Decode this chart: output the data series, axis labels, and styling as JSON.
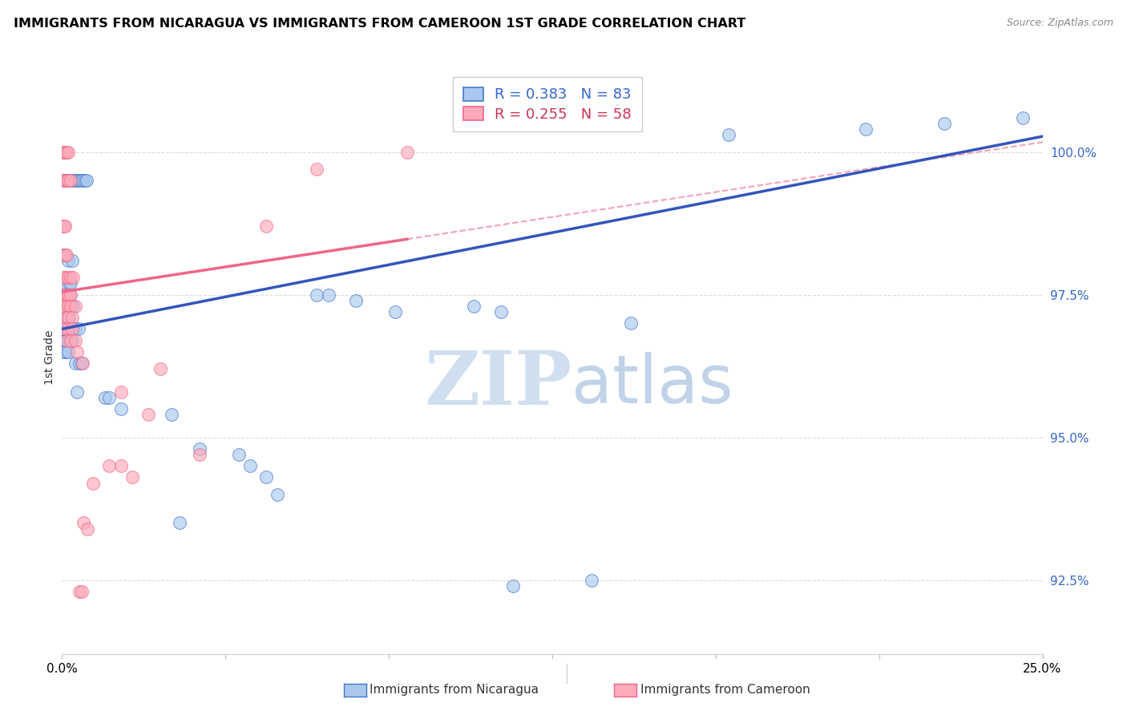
{
  "title": "IMMIGRANTS FROM NICARAGUA VS IMMIGRANTS FROM CAMEROON 1ST GRADE CORRELATION CHART",
  "source": "Source: ZipAtlas.com",
  "ylabel": "1st Grade",
  "xlim": [
    0.0,
    25.0
  ],
  "ylim": [
    91.2,
    101.6
  ],
  "yticks": [
    92.5,
    95.0,
    97.5,
    100.0
  ],
  "ytick_labels": [
    "92.5%",
    "95.0%",
    "97.5%",
    "100.0%"
  ],
  "xtick_positions": [
    0.0,
    4.167,
    8.333,
    12.5,
    16.667,
    20.833,
    25.0
  ],
  "blue_label": "Immigrants from Nicaragua",
  "pink_label": "Immigrants from Cameroon",
  "blue_R": 0.383,
  "blue_N": 83,
  "pink_R": 0.255,
  "pink_N": 58,
  "blue_fill": "#AAC8EE",
  "blue_edge": "#4477CC",
  "pink_fill": "#FFAABB",
  "pink_edge": "#EE6688",
  "blue_line": "#3355BB",
  "pink_line": "#EE6688",
  "grid_color": "#DDDDDD",
  "background": "#FFFFFF",
  "blue_scatter": [
    [
      0.05,
      99.5
    ],
    [
      0.1,
      99.5
    ],
    [
      0.12,
      99.5
    ],
    [
      0.18,
      99.5
    ],
    [
      0.22,
      99.5
    ],
    [
      0.28,
      99.5
    ],
    [
      0.32,
      99.5
    ],
    [
      0.38,
      99.5
    ],
    [
      0.42,
      99.5
    ],
    [
      0.48,
      99.5
    ],
    [
      0.52,
      99.5
    ],
    [
      0.58,
      99.5
    ],
    [
      0.62,
      99.5
    ],
    [
      0.05,
      98.2
    ],
    [
      0.08,
      98.2
    ],
    [
      0.15,
      98.1
    ],
    [
      0.25,
      98.1
    ],
    [
      0.1,
      97.7
    ],
    [
      0.18,
      97.7
    ],
    [
      0.22,
      97.7
    ],
    [
      0.05,
      97.5
    ],
    [
      0.08,
      97.5
    ],
    [
      0.12,
      97.5
    ],
    [
      0.2,
      97.5
    ],
    [
      0.05,
      97.3
    ],
    [
      0.08,
      97.3
    ],
    [
      0.15,
      97.3
    ],
    [
      0.18,
      97.3
    ],
    [
      0.22,
      97.3
    ],
    [
      0.28,
      97.3
    ],
    [
      0.05,
      97.1
    ],
    [
      0.08,
      97.1
    ],
    [
      0.12,
      97.1
    ],
    [
      0.18,
      97.1
    ],
    [
      0.05,
      96.9
    ],
    [
      0.08,
      96.9
    ],
    [
      0.15,
      96.9
    ],
    [
      0.22,
      96.9
    ],
    [
      0.28,
      96.9
    ],
    [
      0.35,
      96.9
    ],
    [
      0.42,
      96.9
    ],
    [
      0.05,
      96.7
    ],
    [
      0.08,
      96.7
    ],
    [
      0.12,
      96.7
    ],
    [
      0.18,
      96.7
    ],
    [
      0.25,
      96.7
    ],
    [
      0.05,
      96.5
    ],
    [
      0.1,
      96.5
    ],
    [
      0.15,
      96.5
    ],
    [
      0.35,
      96.3
    ],
    [
      0.45,
      96.3
    ],
    [
      0.5,
      96.3
    ],
    [
      0.38,
      95.8
    ],
    [
      1.1,
      95.7
    ],
    [
      1.2,
      95.7
    ],
    [
      1.5,
      95.5
    ],
    [
      2.8,
      95.4
    ],
    [
      4.5,
      94.7
    ],
    [
      4.8,
      94.5
    ],
    [
      5.2,
      94.3
    ],
    [
      5.5,
      94.0
    ],
    [
      3.0,
      93.5
    ],
    [
      6.5,
      97.5
    ],
    [
      6.8,
      97.5
    ],
    [
      7.5,
      97.4
    ],
    [
      8.5,
      97.2
    ],
    [
      10.5,
      97.3
    ],
    [
      11.2,
      97.2
    ],
    [
      14.5,
      97.0
    ],
    [
      17.0,
      100.3
    ],
    [
      20.5,
      100.4
    ],
    [
      22.5,
      100.5
    ],
    [
      24.5,
      100.6
    ],
    [
      11.5,
      92.4
    ],
    [
      13.5,
      92.5
    ],
    [
      3.5,
      94.8
    ]
  ],
  "pink_scatter": [
    [
      0.02,
      100.0
    ],
    [
      0.05,
      100.0
    ],
    [
      0.08,
      100.0
    ],
    [
      0.12,
      100.0
    ],
    [
      0.15,
      100.0
    ],
    [
      0.02,
      99.5
    ],
    [
      0.05,
      99.5
    ],
    [
      0.08,
      99.5
    ],
    [
      0.12,
      99.5
    ],
    [
      0.15,
      99.5
    ],
    [
      0.22,
      99.5
    ],
    [
      0.02,
      98.7
    ],
    [
      0.05,
      98.7
    ],
    [
      0.08,
      98.7
    ],
    [
      0.05,
      98.2
    ],
    [
      0.08,
      98.2
    ],
    [
      0.12,
      98.2
    ],
    [
      0.05,
      97.8
    ],
    [
      0.08,
      97.8
    ],
    [
      0.15,
      97.8
    ],
    [
      0.22,
      97.8
    ],
    [
      0.28,
      97.8
    ],
    [
      0.05,
      97.5
    ],
    [
      0.08,
      97.5
    ],
    [
      0.15,
      97.5
    ],
    [
      0.22,
      97.5
    ],
    [
      0.05,
      97.3
    ],
    [
      0.08,
      97.3
    ],
    [
      0.15,
      97.3
    ],
    [
      0.22,
      97.3
    ],
    [
      0.35,
      97.3
    ],
    [
      0.08,
      97.1
    ],
    [
      0.15,
      97.1
    ],
    [
      0.25,
      97.1
    ],
    [
      0.08,
      96.9
    ],
    [
      0.15,
      96.9
    ],
    [
      0.25,
      96.9
    ],
    [
      0.12,
      96.7
    ],
    [
      0.22,
      96.7
    ],
    [
      0.35,
      96.7
    ],
    [
      0.38,
      96.5
    ],
    [
      0.52,
      96.3
    ],
    [
      1.5,
      95.8
    ],
    [
      2.2,
      95.4
    ],
    [
      1.2,
      94.5
    ],
    [
      1.5,
      94.5
    ],
    [
      1.8,
      94.3
    ],
    [
      0.55,
      93.5
    ],
    [
      0.65,
      93.4
    ],
    [
      3.5,
      94.7
    ],
    [
      5.2,
      98.7
    ],
    [
      0.45,
      92.3
    ],
    [
      0.5,
      92.3
    ],
    [
      2.5,
      96.2
    ],
    [
      0.8,
      94.2
    ],
    [
      6.5,
      99.7
    ],
    [
      8.8,
      100.0
    ]
  ]
}
